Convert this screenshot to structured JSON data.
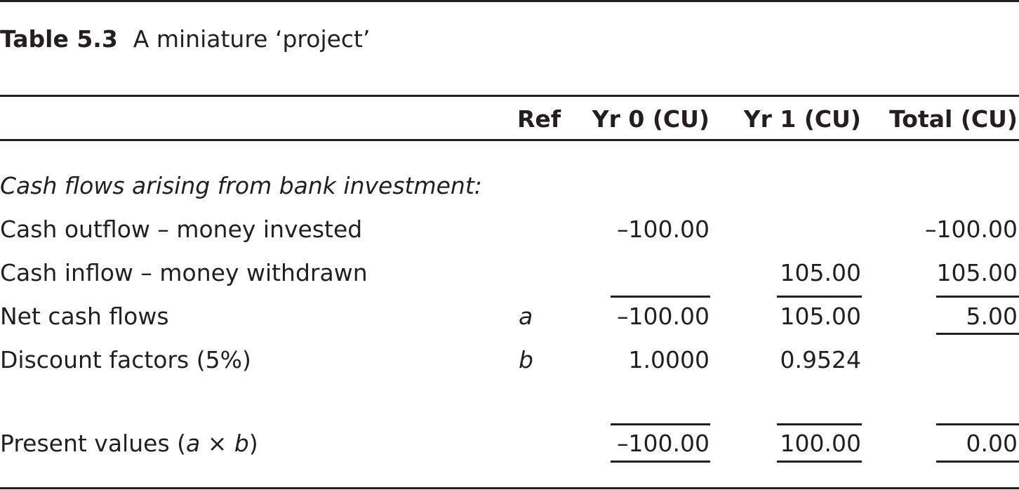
{
  "table": {
    "caption_number": "Table 5.3",
    "caption_title": "A miniature ‘project’",
    "headers": {
      "ref": "Ref",
      "yr0": "Yr 0 (CU)",
      "yr1": "Yr 1 (CU)",
      "total": "Total (CU)"
    },
    "section_label": "Cash flows arising from bank investment:",
    "rows": [
      {
        "label": "Cash outflow – money invested",
        "ref": "",
        "yr0": "–100.00",
        "yr1": "",
        "total": "–100.00"
      },
      {
        "label": "Cash inflow – money withdrawn",
        "ref": "",
        "yr0": "",
        "yr1": "105.00",
        "total": "105.00"
      },
      {
        "label": "Net cash flows",
        "ref": "a",
        "yr0": "–100.00",
        "yr1": "105.00",
        "total": "5.00"
      },
      {
        "label": "Discount factors (5%)",
        "ref": "b",
        "yr0": "1.0000",
        "yr1": "0.9524",
        "total": ""
      }
    ],
    "pv_row": {
      "label_pre": "Present values (",
      "label_a": "a",
      "label_times": " × ",
      "label_b": "b",
      "label_post": ")",
      "yr0": "–100.00",
      "yr1": "100.00",
      "total": "0.00"
    }
  }
}
